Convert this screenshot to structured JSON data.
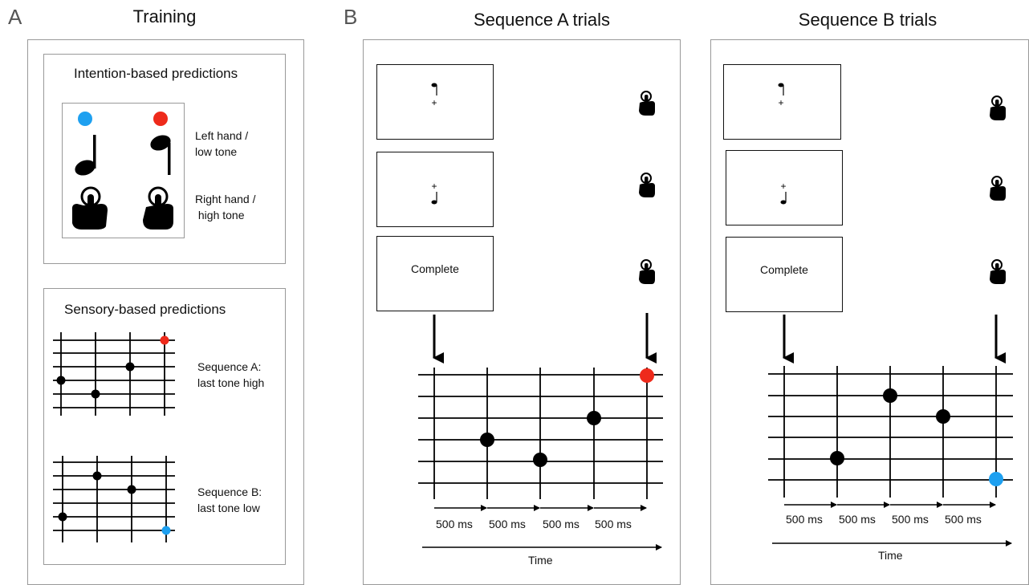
{
  "panel_a": {
    "letter": "A",
    "title": "Training",
    "intention": {
      "title": "Intention-based predictions",
      "left_label_line1": "Left hand /",
      "left_label_line2": "low tone",
      "right_label_line1": "Right hand /",
      "right_label_line2": " high tone",
      "colors": {
        "left_dot": "#1ea0f0",
        "right_dot": "#ee2a1b"
      }
    },
    "sensory": {
      "title": "Sensory-based predictions",
      "seq_a_line1": "Sequence A:",
      "seq_a_line2": "last tone high",
      "seq_b_line1": "Sequence B:",
      "seq_b_line2": "last tone low"
    }
  },
  "panel_b": {
    "letter": "B",
    "seq_a": {
      "title": "Sequence A trials",
      "screen3_text": "Complete",
      "intervals": [
        "500 ms",
        "500 ms",
        "500 ms",
        "500 ms"
      ],
      "time_label": "Time"
    },
    "seq_b": {
      "title": "Sequence B trials",
      "screen3_text": "Complete",
      "intervals": [
        "500 ms",
        "500 ms",
        "500 ms",
        "500 ms"
      ],
      "time_label": "Time"
    }
  }
}
